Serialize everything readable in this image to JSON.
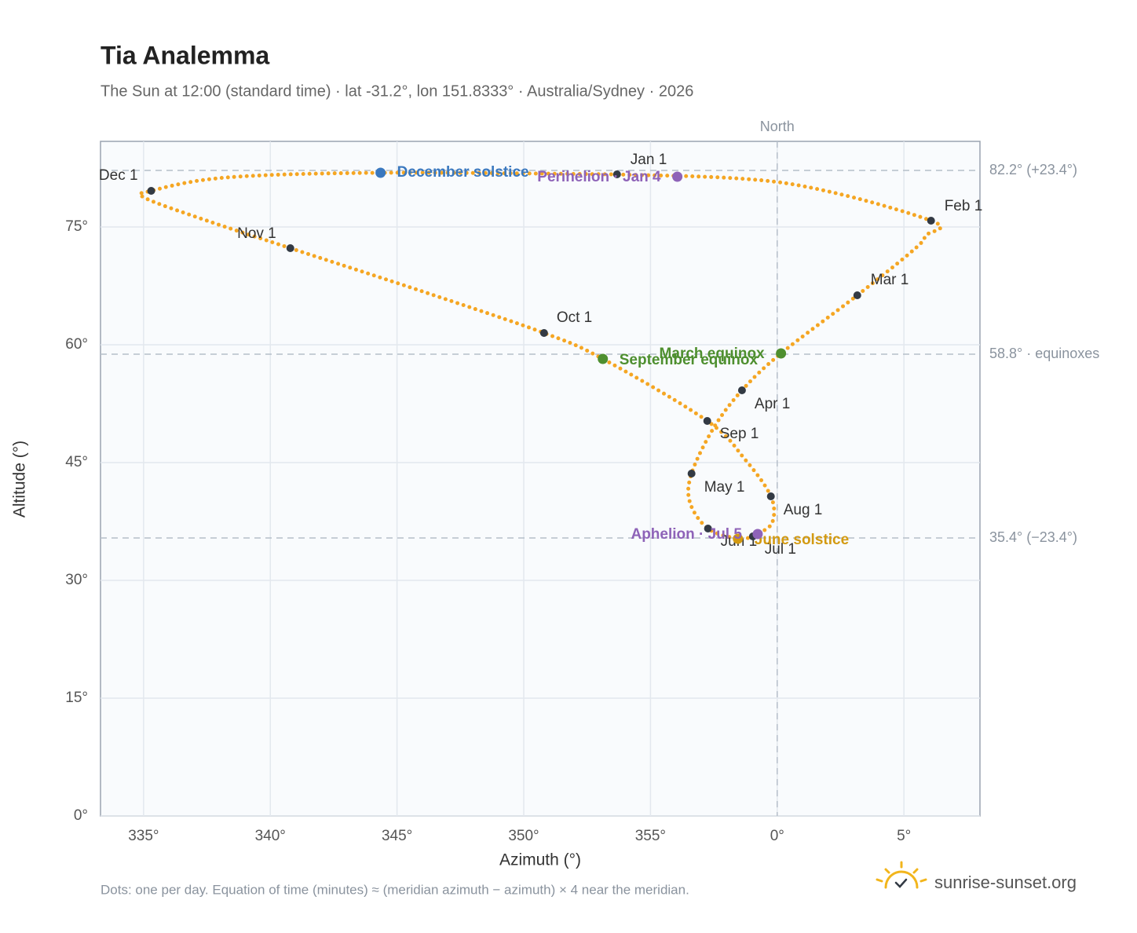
{
  "chart_data": {
    "type": "scatter",
    "title": "Tia Analemma",
    "subtitle": "The Sun at 12:00 (standard time) · lat -31.2°, lon 151.8333° · Australia/Sydney · 2026",
    "x_label": "Azimuth (°)",
    "y_label": "Altitude (°)",
    "footnote": "Dots: one per day. Equation of time (minutes) ≈ (meridian azimuth − azimuth) × 4 near the meridian.",
    "brand": "sunrise-sunset.org",
    "xlim": [
      -26.7,
      8
    ],
    "ylim": [
      0,
      85.9
    ],
    "xticks": [
      {
        "value": -25,
        "label": "335°"
      },
      {
        "value": -20,
        "label": "340°"
      },
      {
        "value": -15,
        "label": "345°"
      },
      {
        "value": -10,
        "label": "350°"
      },
      {
        "value": -5,
        "label": "355°"
      },
      {
        "value": 0,
        "label": "0°"
      },
      {
        "value": 5,
        "label": "5°"
      }
    ],
    "yticks": [
      {
        "value": 0,
        "label": "0°"
      },
      {
        "value": 15,
        "label": "15°"
      },
      {
        "value": 30,
        "label": "30°"
      },
      {
        "value": 45,
        "label": "45°"
      },
      {
        "value": 60,
        "label": "60°"
      },
      {
        "value": 75,
        "label": "75°"
      }
    ],
    "grid": true,
    "series": [
      {
        "color": "#f5a623",
        "x": [
          -6.32,
          0.28,
          6.07,
          5.86,
          5.39,
          3.16,
          0.15,
          -1.39,
          -2.51,
          -3.38,
          -3.44,
          -2.73,
          -1.55,
          -0.96,
          -0.77,
          -0.19,
          -0.25,
          -1.27,
          -2.76,
          -6.88,
          -9.2,
          -13.82,
          -19.21,
          -22.59,
          -24.95,
          -24.7,
          -21.72,
          -15.65,
          -6.32
        ],
        "y": [
          81.7,
          80.6,
          75.8,
          73.9,
          72.1,
          66.3,
          58.9,
          54.2,
          49.4,
          43.6,
          39.9,
          36.6,
          35.3,
          35.6,
          35.9,
          37.4,
          40.7,
          45.4,
          50.3,
          58.2,
          61.5,
          66.6,
          72.3,
          75.9,
          78.7,
          79.6,
          81.3,
          81.9,
          81.7
        ]
      }
    ],
    "months": [
      {
        "label": "Jan 1",
        "x": -6.32,
        "y": 81.7
      },
      {
        "label": "Feb 1",
        "x": 6.07,
        "y": 75.8
      },
      {
        "label": "Mar 1",
        "x": 3.16,
        "y": 66.3
      },
      {
        "label": "Apr 1",
        "x": -1.39,
        "y": 54.2
      },
      {
        "label": "May 1",
        "x": -3.38,
        "y": 43.6
      },
      {
        "label": "Jun 1",
        "x": -2.73,
        "y": 36.6
      },
      {
        "label": "Jul 1",
        "x": -0.96,
        "y": 35.6
      },
      {
        "label": "Aug 1",
        "x": -0.25,
        "y": 40.7
      },
      {
        "label": "Sep 1",
        "x": -2.76,
        "y": 50.3
      },
      {
        "label": "Oct 1",
        "x": -9.2,
        "y": 61.5
      },
      {
        "label": "Nov 1",
        "x": -19.21,
        "y": 72.3
      },
      {
        "label": "Dec 1",
        "x": -24.7,
        "y": 79.6
      }
    ],
    "month_color": "#333a44",
    "events": [
      {
        "label": "December solstice",
        "x": -15.65,
        "y": 81.9,
        "color": "#3a78bf"
      },
      {
        "label": "Perihelion · Jan 4",
        "x": -3.94,
        "y": 81.4,
        "color": "#8e63b8"
      },
      {
        "label": "March equinox",
        "x": 0.15,
        "y": 58.9,
        "color": "#4e8f2f"
      },
      {
        "label": "September equinox",
        "x": -6.88,
        "y": 58.2,
        "color": "#4e8f2f"
      },
      {
        "label": "June solstice",
        "x": -1.55,
        "y": 35.3,
        "color": "#d39a12"
      },
      {
        "label": "Aphelion · Jul 5",
        "x": -0.77,
        "y": 35.9,
        "color": "#8e63b8"
      }
    ],
    "reference_lines": [
      {
        "value": 82.2,
        "label": "82.2° (+23.4°)"
      },
      {
        "value": 58.8,
        "label": "58.8° · equinoxes"
      },
      {
        "value": 35.4,
        "label": "35.4° (−23.4°)"
      }
    ],
    "north": {
      "value": 0,
      "label": "North"
    }
  }
}
